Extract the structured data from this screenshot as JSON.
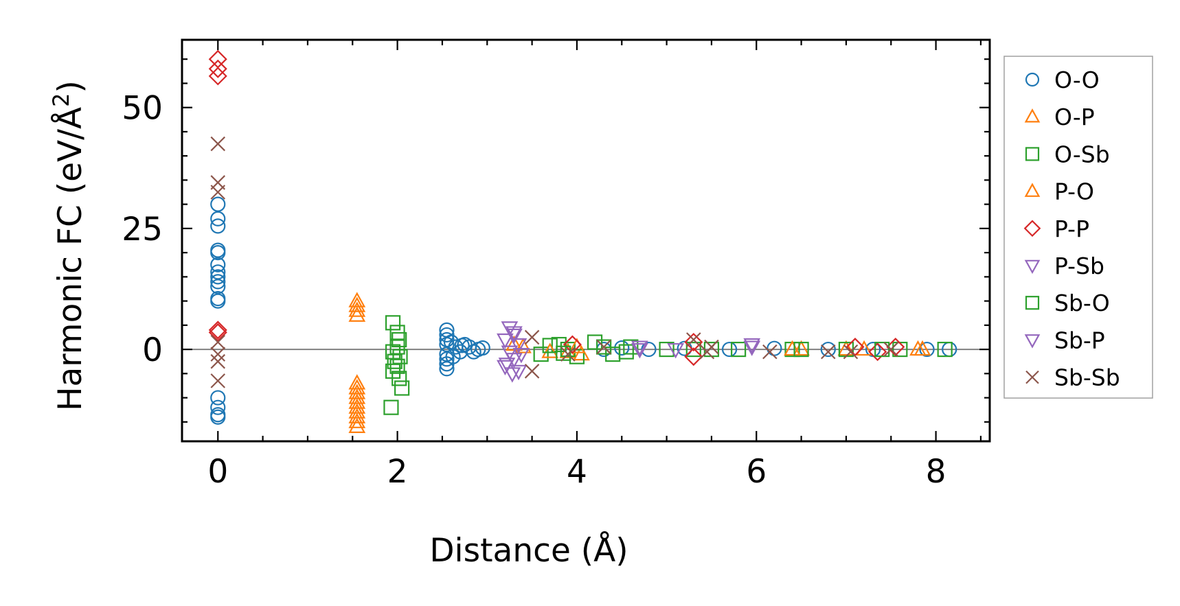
{
  "chart_data": {
    "type": "scatter",
    "xlabel": "Distance (Å)",
    "ylabel": "Harmonic FC (eV/Å",
    "ylabel_sup": "2",
    "ylabel_end": ")",
    "xlim": [
      -0.4,
      8.6
    ],
    "ylim": [
      -19,
      64
    ],
    "xticks": [
      0,
      2,
      4,
      6,
      8
    ],
    "xtick_labels": [
      "0",
      "2",
      "4",
      "6",
      "8"
    ],
    "yticks": [
      0,
      25,
      50
    ],
    "ytick_labels": [
      "0",
      "25",
      "50"
    ],
    "zero_line": true,
    "grid": false,
    "legend_position": "outside-right",
    "series": [
      {
        "name": "O-O",
        "marker": "circle",
        "color": "#1f77b4",
        "points": [
          [
            0,
            30
          ],
          [
            0,
            27
          ],
          [
            0,
            25.5
          ],
          [
            0,
            20.5
          ],
          [
            0,
            20
          ],
          [
            0,
            17.5
          ],
          [
            0,
            16
          ],
          [
            0,
            15
          ],
          [
            0,
            14
          ],
          [
            0,
            13
          ],
          [
            0,
            10.5
          ],
          [
            0,
            10
          ],
          [
            0,
            -10
          ],
          [
            0,
            -12
          ],
          [
            0,
            -13.5
          ],
          [
            0,
            -14
          ],
          [
            2.55,
            4
          ],
          [
            2.55,
            3
          ],
          [
            2.55,
            2
          ],
          [
            2.55,
            1
          ],
          [
            2.55,
            -1
          ],
          [
            2.55,
            -2
          ],
          [
            2.55,
            -3
          ],
          [
            2.55,
            -4
          ],
          [
            2.6,
            1.5
          ],
          [
            2.65,
            0.5
          ],
          [
            2.7,
            -0.5
          ],
          [
            2.75,
            1
          ],
          [
            2.8,
            0.5
          ],
          [
            2.85,
            -0.5
          ],
          [
            2.9,
            0
          ],
          [
            2.95,
            0.3
          ],
          [
            2.62,
            -1.5
          ],
          [
            2.72,
            0.8
          ],
          [
            4.3,
            0
          ],
          [
            4.5,
            0.3
          ],
          [
            4.8,
            0
          ],
          [
            5.2,
            0.2
          ],
          [
            5.7,
            0
          ],
          [
            6.2,
            0.2
          ],
          [
            6.8,
            0
          ],
          [
            7.3,
            0
          ],
          [
            7.9,
            0
          ],
          [
            8.15,
            0
          ]
        ]
      },
      {
        "name": "O-P",
        "marker": "triangle-up",
        "color": "#ff7f0e",
        "points": [
          [
            1.55,
            10
          ],
          [
            1.55,
            9
          ],
          [
            1.55,
            8
          ],
          [
            1.55,
            7
          ],
          [
            1.55,
            -7
          ],
          [
            1.55,
            -8
          ],
          [
            1.55,
            -9
          ],
          [
            1.55,
            -10
          ],
          [
            1.55,
            -11
          ],
          [
            1.55,
            -12
          ],
          [
            1.55,
            -13
          ],
          [
            1.55,
            -14
          ],
          [
            1.55,
            -15
          ],
          [
            1.55,
            -16
          ],
          [
            3.4,
            0.5
          ],
          [
            3.9,
            -0.5
          ],
          [
            4.05,
            -1
          ],
          [
            6.5,
            0
          ],
          [
            7.0,
            0
          ],
          [
            7.85,
            0
          ]
        ]
      },
      {
        "name": "O-Sb",
        "marker": "square",
        "color": "#2ca02c",
        "points": [
          [
            1.95,
            5.5
          ],
          [
            2.0,
            3.5
          ],
          [
            2.02,
            2
          ],
          [
            2.0,
            0.5
          ],
          [
            1.95,
            -0.5
          ],
          [
            2.03,
            -1.5
          ],
          [
            1.97,
            -2.5
          ],
          [
            2.0,
            -3.5
          ],
          [
            1.95,
            -4.5
          ],
          [
            2.02,
            -6
          ],
          [
            2.05,
            -8
          ],
          [
            1.93,
            -12
          ],
          [
            3.6,
            -1
          ],
          [
            3.8,
            1
          ],
          [
            3.9,
            0
          ],
          [
            4.0,
            -1.5
          ],
          [
            4.2,
            1.5
          ],
          [
            4.4,
            -1
          ],
          [
            4.6,
            0.5
          ],
          [
            5.0,
            0
          ],
          [
            5.3,
            0
          ],
          [
            5.8,
            0
          ],
          [
            6.4,
            0
          ],
          [
            7.0,
            0
          ],
          [
            7.6,
            0
          ],
          [
            8.1,
            0
          ]
        ]
      },
      {
        "name": "P-O",
        "marker": "triangle-up",
        "color": "#ff7f0e",
        "points": [
          [
            3.3,
            1
          ],
          [
            3.7,
            -0.5
          ],
          [
            4.0,
            0.5
          ],
          [
            6.4,
            0
          ],
          [
            7.2,
            0
          ],
          [
            7.8,
            0
          ]
        ]
      },
      {
        "name": "P-P",
        "marker": "diamond",
        "color": "#d62728",
        "points": [
          [
            0,
            60
          ],
          [
            0,
            58
          ],
          [
            0,
            56.5
          ],
          [
            0,
            4
          ],
          [
            0,
            3.5
          ],
          [
            3.95,
            1
          ],
          [
            5.3,
            -1.5
          ],
          [
            5.3,
            1.5
          ],
          [
            7.1,
            0.5
          ],
          [
            7.35,
            -0.5
          ],
          [
            7.55,
            0.5
          ]
        ]
      },
      {
        "name": "P-Sb",
        "marker": "triangle-down",
        "color": "#9467bd",
        "points": [
          [
            3.25,
            4.5
          ],
          [
            3.3,
            3.5
          ],
          [
            3.2,
            2
          ],
          [
            3.35,
            1
          ],
          [
            3.25,
            -0.5
          ],
          [
            3.3,
            -2
          ],
          [
            3.2,
            -3.5
          ],
          [
            3.35,
            -4.5
          ],
          [
            3.28,
            -5
          ],
          [
            4.7,
            0.5
          ],
          [
            5.1,
            0
          ],
          [
            5.95,
            1
          ]
        ]
      },
      {
        "name": "Sb-O",
        "marker": "square",
        "color": "#2ca02c",
        "points": [
          [
            3.7,
            0.8
          ],
          [
            3.85,
            -0.8
          ],
          [
            4.3,
            0.5
          ],
          [
            4.55,
            -0.5
          ],
          [
            5.5,
            0
          ],
          [
            6.5,
            0
          ],
          [
            7.4,
            0
          ]
        ]
      },
      {
        "name": "Sb-P",
        "marker": "triangle-down",
        "color": "#9467bd",
        "points": [
          [
            3.3,
            3
          ],
          [
            3.22,
            -3
          ],
          [
            3.38,
            -1
          ],
          [
            4.7,
            0
          ],
          [
            5.95,
            0.5
          ]
        ]
      },
      {
        "name": "Sb-Sb",
        "marker": "x",
        "color": "#8c564b",
        "points": [
          [
            0,
            42.5
          ],
          [
            0,
            34.5
          ],
          [
            0,
            32.5
          ],
          [
            0,
            1.5
          ],
          [
            0,
            -1
          ],
          [
            0,
            -2.5
          ],
          [
            0,
            -6.5
          ],
          [
            3.5,
            2.5
          ],
          [
            3.5,
            -4.5
          ],
          [
            3.9,
            -1
          ],
          [
            4.3,
            0.5
          ],
          [
            5.3,
            2
          ],
          [
            5.45,
            -0.5
          ],
          [
            5.5,
            0.5
          ],
          [
            6.15,
            -0.5
          ],
          [
            6.8,
            -0.5
          ],
          [
            7.05,
            -0.5
          ],
          [
            7.5,
            0
          ]
        ]
      }
    ]
  }
}
